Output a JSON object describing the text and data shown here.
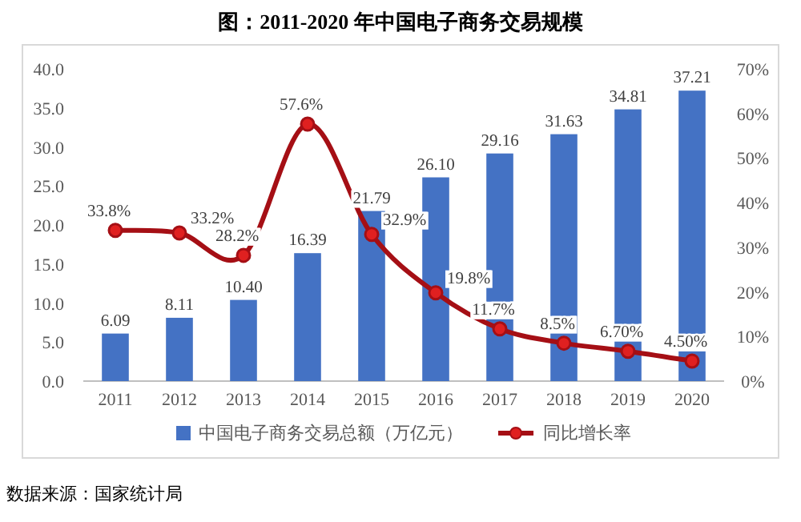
{
  "chart_data": {
    "type": "bar",
    "title": "图：2011-2020 年中国电子商务交易规模",
    "categories": [
      "2011",
      "2012",
      "2013",
      "2014",
      "2015",
      "2016",
      "2017",
      "2018",
      "2019",
      "2020"
    ],
    "series": [
      {
        "name": "中国电子商务交易总额（万亿元）",
        "color": "#4472c4",
        "values": [
          6.09,
          8.11,
          10.4,
          16.39,
          21.79,
          26.1,
          29.16,
          31.63,
          34.81,
          37.21
        ],
        "value_labels": [
          "6.09",
          "8.11",
          "10.40",
          "16.39",
          "21.79",
          "26.10",
          "29.16",
          "31.63",
          "34.81",
          "37.21"
        ]
      },
      {
        "name": "同比增长率",
        "type": "line",
        "axis": "y2",
        "color": "#a50f15",
        "marker": "circle",
        "values": [
          33.8,
          33.2,
          28.2,
          57.6,
          32.9,
          19.8,
          11.7,
          8.5,
          6.7,
          4.5
        ],
        "value_labels": [
          "33.8%",
          "33.2%",
          "28.2%",
          "57.6%",
          "32.9%",
          "19.8%",
          "11.7%",
          "8.5%",
          "6.70%",
          "4.50%"
        ]
      }
    ],
    "ylim": [
      0,
      40
    ],
    "yticks": [
      {
        "value": 0,
        "label": "0.0"
      },
      {
        "value": 5,
        "label": "5.0"
      },
      {
        "value": 10,
        "label": "10.0"
      },
      {
        "value": 15,
        "label": "15.0"
      },
      {
        "value": 20,
        "label": "20.0"
      },
      {
        "value": 25,
        "label": "25.0"
      },
      {
        "value": 30,
        "label": "30.0"
      },
      {
        "value": 35,
        "label": "35.0"
      },
      {
        "value": 40,
        "label": "40.0"
      }
    ],
    "y2lim": [
      0,
      70
    ],
    "y2ticks": [
      {
        "value": 0,
        "label": "0%"
      },
      {
        "value": 10,
        "label": "10%"
      },
      {
        "value": 20,
        "label": "20%"
      },
      {
        "value": 30,
        "label": "30%"
      },
      {
        "value": 40,
        "label": "40%"
      },
      {
        "value": 50,
        "label": "50%"
      },
      {
        "value": 60,
        "label": "60%"
      },
      {
        "value": 70,
        "label": "70%"
      }
    ],
    "grid": false,
    "legend": "bottom",
    "annotations": [
      "数据来源：国家统计局"
    ]
  }
}
